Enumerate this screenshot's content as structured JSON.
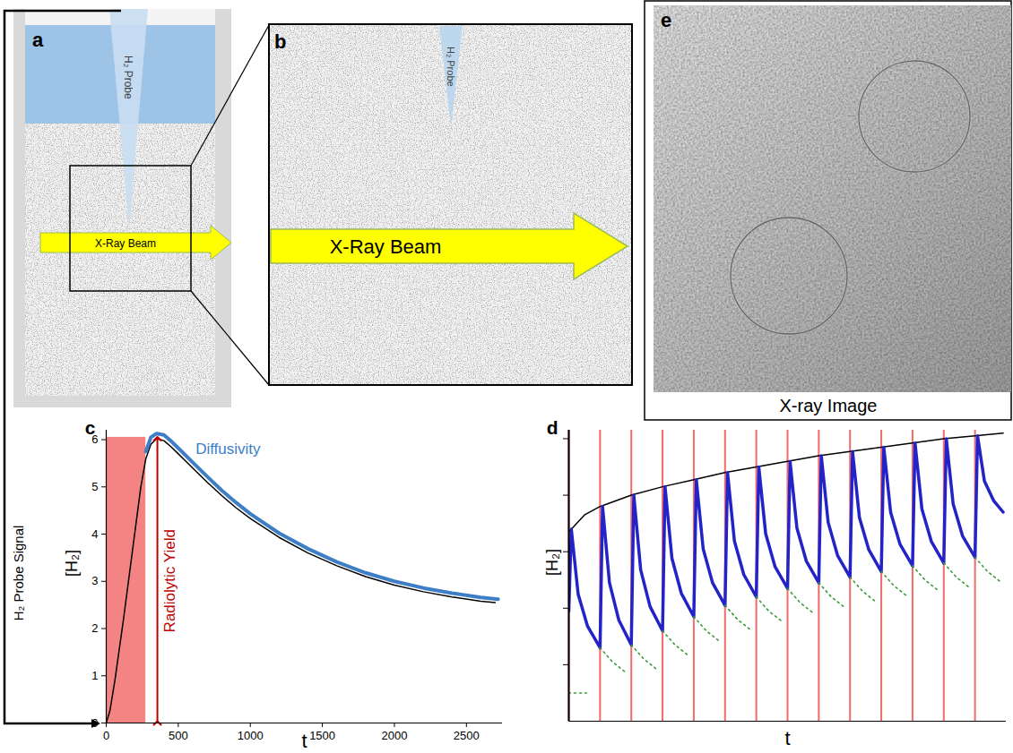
{
  "diagram": {
    "signal_label": "H₂ Probe Signal",
    "panels": {
      "a": {
        "letter": "a",
        "probe_label": "H₂ Probe",
        "beam_label": "X-Ray Beam"
      },
      "b": {
        "letter": "b",
        "probe_label": "H₂ Probe",
        "beam_label": "X-Ray Beam"
      },
      "e": {
        "letter": "e",
        "caption": "X-ray Image"
      }
    }
  },
  "chart_data": [
    {
      "panel": "c",
      "type": "line",
      "xlabel": "t",
      "ylabel": "[H₂]",
      "xlim": [
        0,
        2750
      ],
      "ylim": [
        0,
        6.2
      ],
      "xticks": [
        0,
        500,
        1000,
        1500,
        2000,
        2500
      ],
      "yticks": [
        0,
        1,
        2,
        3,
        4,
        5,
        6
      ],
      "shaded": {
        "x": [
          0,
          275
        ],
        "y": [
          0,
          6.05
        ],
        "color": "#f48484"
      },
      "series": [
        {
          "color": "#000000",
          "x": [
            0,
            25,
            60,
            120,
            180,
            240,
            275,
            310,
            350,
            400,
            450,
            500,
            600,
            700,
            800,
            900,
            1000,
            1200,
            1400,
            1600,
            1800,
            2000,
            2200,
            2400,
            2600,
            2700
          ],
          "values": [
            0,
            0.25,
            0.9,
            2.2,
            3.6,
            5.0,
            5.6,
            5.9,
            6.02,
            5.98,
            5.85,
            5.7,
            5.4,
            5.1,
            4.82,
            4.56,
            4.33,
            3.93,
            3.6,
            3.33,
            3.1,
            2.92,
            2.78,
            2.67,
            2.58,
            2.55
          ]
        },
        {
          "color": "#3d7ec6",
          "x": [
            275,
            310,
            350,
            400,
            450,
            500,
            600,
            700,
            800,
            900,
            1000,
            1200,
            1400,
            1600,
            1800,
            2000,
            2200,
            2400,
            2600,
            2720
          ],
          "values": [
            5.75,
            6.05,
            6.13,
            6.1,
            5.97,
            5.82,
            5.52,
            5.22,
            4.93,
            4.67,
            4.43,
            4.02,
            3.69,
            3.41,
            3.18,
            3.0,
            2.86,
            2.75,
            2.66,
            2.62
          ]
        }
      ],
      "annotations": [
        {
          "text": "Diffusivity",
          "x": 620,
          "y": 5.8,
          "color": "#3d7ec6"
        },
        {
          "text": "Radiolytic Yield",
          "x": 355,
          "y": [
            0,
            6.02
          ],
          "color": "#c00000"
        }
      ]
    },
    {
      "panel": "d",
      "type": "line",
      "xlabel": "t",
      "ylabel": "[H₂]",
      "xlim": [
        0,
        14
      ],
      "ylim": [
        0,
        10.3
      ],
      "yticks": [
        2,
        4,
        6,
        8,
        10
      ],
      "tick_labels": false,
      "pulses": {
        "x": [
          0,
          1,
          2,
          3,
          4,
          5,
          6,
          7,
          8,
          9,
          10,
          11,
          12,
          13
        ],
        "color": "#f26b6b"
      },
      "series": [
        {
          "color": "#000000",
          "line_style": "solid",
          "x": [
            0,
            0.5,
            1,
            2,
            3,
            4,
            5,
            6,
            7,
            8,
            9,
            10,
            11,
            12,
            13,
            13.9
          ],
          "values": [
            6.7,
            7.3,
            7.6,
            8.0,
            8.3,
            8.55,
            8.8,
            9.0,
            9.2,
            9.4,
            9.55,
            9.7,
            9.85,
            10.0,
            10.1,
            10.2
          ]
        },
        {
          "color": "#2323c8",
          "line_style": "solid",
          "x": [
            0,
            0.08,
            0.3,
            0.6,
            1,
            1.08,
            1.3,
            1.6,
            2,
            2.08,
            2.3,
            2.6,
            3,
            3.08,
            3.3,
            3.6,
            4,
            4.08,
            4.3,
            4.6,
            5,
            5.08,
            5.3,
            5.6,
            6,
            6.08,
            6.3,
            6.6,
            7,
            7.08,
            7.3,
            7.6,
            8,
            8.08,
            8.3,
            8.6,
            9,
            9.08,
            9.3,
            9.6,
            10,
            10.08,
            10.3,
            10.6,
            11,
            11.08,
            11.3,
            11.6,
            12,
            12.08,
            12.3,
            12.6,
            13,
            13.08,
            13.3,
            13.6,
            13.9
          ],
          "values": [
            3.9,
            6.8,
            4.49,
            3.36,
            2.6,
            7.6,
            4.91,
            3.58,
            2.7,
            8.0,
            5.36,
            4.06,
            3.2,
            8.3,
            5.77,
            4.53,
            3.7,
            8.55,
            6.1,
            4.9,
            4.1,
            8.8,
            6.38,
            5.19,
            4.4,
            9.0,
            6.64,
            5.47,
            4.7,
            9.2,
            6.84,
            5.67,
            4.9,
            9.4,
            7.04,
            5.87,
            5.1,
            9.55,
            7.21,
            6.07,
            5.3,
            9.7,
            7.39,
            6.26,
            5.5,
            9.85,
            7.51,
            6.37,
            5.6,
            10.0,
            7.69,
            6.56,
            5.8,
            10.1,
            8.5,
            7.8,
            7.4
          ]
        },
        {
          "color": "#3a9a3a",
          "line_style": "dotted",
          "x": [
            0,
            0.6,
            0.8,
            1,
            1.4,
            1.8,
            1.9,
            2,
            2.4,
            2.8,
            2.9,
            3,
            3.4,
            3.8,
            3.9,
            4,
            4.4,
            4.8,
            4.9,
            5,
            5.4,
            5.8,
            5.9,
            6,
            6.4,
            6.8,
            6.9,
            7,
            7.4,
            7.8,
            7.9,
            8,
            8.4,
            8.8,
            8.9,
            9,
            9.4,
            9.8,
            9.9,
            10,
            10.4,
            10.8,
            10.9,
            11,
            11.4,
            11.8,
            11.9,
            12,
            12.4,
            12.8,
            12.9,
            13,
            13.4,
            13.8
          ],
          "values": [
            1.0,
            1.0,
            null,
            2.6,
            2.1,
            1.75,
            null,
            2.7,
            2.2,
            1.85,
            null,
            3.2,
            2.7,
            2.35,
            null,
            3.7,
            3.2,
            2.85,
            null,
            4.1,
            3.6,
            3.25,
            null,
            4.4,
            3.9,
            3.55,
            null,
            4.7,
            4.2,
            3.85,
            null,
            4.9,
            4.4,
            4.05,
            null,
            5.1,
            4.6,
            4.25,
            null,
            5.3,
            4.8,
            4.45,
            null,
            5.5,
            5.0,
            4.65,
            null,
            5.6,
            5.1,
            4.75,
            null,
            5.8,
            5.3,
            4.95
          ]
        }
      ]
    }
  ]
}
